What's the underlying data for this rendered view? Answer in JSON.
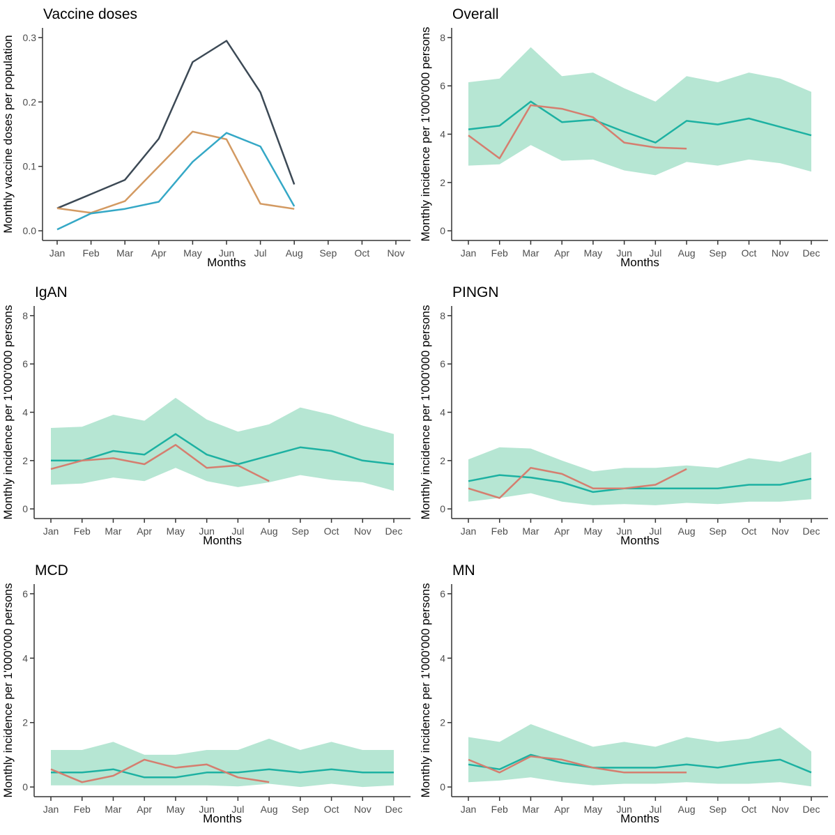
{
  "colors": {
    "axis_line": "#333333",
    "tick_text": "#4d4d4d",
    "title_text": "#000000",
    "navy": "#3c4955",
    "orange": "#d39a62",
    "blue": "#35a8c6",
    "teal": "#1db1a2",
    "red": "#d57e6f",
    "ribbon": "#b6e6d3"
  },
  "chart_data": [
    {
      "id": "vaccine-doses",
      "type": "line",
      "title": "Vaccine doses",
      "xlabel": "Months",
      "ylabel": "Monthly vaccine doses per population",
      "categories": [
        "Jan",
        "Feb",
        "Mar",
        "Apr",
        "May",
        "Jun",
        "Jul",
        "Aug",
        "Sep",
        "Oct",
        "Nov"
      ],
      "ylim": [
        0,
        0.3
      ],
      "yticks": [
        0,
        0.1,
        0.2,
        0.3
      ],
      "ytick_labels": [
        "0.0",
        "0.1",
        "0.2",
        "0.3"
      ],
      "grid": false,
      "legend": "none",
      "series": [
        {
          "name": "navy",
          "color": "#3c4955",
          "values": [
            0.035,
            0.057,
            0.079,
            0.143,
            0.262,
            0.295,
            0.215,
            0.072
          ]
        },
        {
          "name": "orange",
          "color": "#d39a62",
          "values": [
            0.035,
            0.028,
            0.046,
            0.1,
            0.154,
            0.142,
            0.042,
            0.034
          ]
        },
        {
          "name": "blue",
          "color": "#35a8c6",
          "values": [
            0.002,
            0.027,
            0.034,
            0.045,
            0.107,
            0.152,
            0.131,
            0.038
          ]
        }
      ]
    },
    {
      "id": "overall",
      "type": "line",
      "title": "Overall",
      "xlabel": "Months",
      "ylabel": "Monthly incidence per 1'000'000 persons",
      "categories": [
        "Jan",
        "Feb",
        "Mar",
        "Apr",
        "May",
        "Jun",
        "Jul",
        "Aug",
        "Sep",
        "Oct",
        "Nov",
        "Dec"
      ],
      "ylim": [
        0,
        8
      ],
      "yticks": [
        0,
        2,
        4,
        6,
        8
      ],
      "ytick_labels": [
        "0",
        "2",
        "4",
        "6",
        "8"
      ],
      "grid": false,
      "legend": "none",
      "ribbon": {
        "color": "#b6e6d3",
        "upper": [
          6.15,
          6.3,
          7.6,
          6.4,
          6.55,
          5.9,
          5.35,
          6.4,
          6.15,
          6.55,
          6.3,
          5.75
        ],
        "lower": [
          2.7,
          2.75,
          3.55,
          2.9,
          2.95,
          2.5,
          2.3,
          2.85,
          2.7,
          2.95,
          2.8,
          2.45
        ]
      },
      "series": [
        {
          "name": "teal",
          "color": "#1db1a2",
          "values": [
            4.2,
            4.35,
            5.35,
            4.5,
            4.6,
            4.1,
            3.65,
            4.55,
            4.4,
            4.65,
            4.3,
            3.95
          ]
        },
        {
          "name": "red",
          "color": "#d57e6f",
          "values": [
            3.95,
            3.0,
            5.2,
            5.05,
            4.7,
            3.65,
            3.45,
            3.4
          ]
        }
      ]
    },
    {
      "id": "igan",
      "type": "line",
      "title": "IgAN",
      "xlabel": "Months",
      "ylabel": "Monthly incidence per 1'000'000 persons",
      "categories": [
        "Jan",
        "Feb",
        "Mar",
        "Apr",
        "May",
        "Jun",
        "Jul",
        "Aug",
        "Sep",
        "Oct",
        "Nov",
        "Dec"
      ],
      "ylim": [
        0,
        8
      ],
      "yticks": [
        0,
        2,
        4,
        6,
        8
      ],
      "ytick_labels": [
        "0",
        "2",
        "4",
        "6",
        "8"
      ],
      "grid": false,
      "legend": "none",
      "ribbon": {
        "color": "#b6e6d3",
        "upper": [
          3.35,
          3.4,
          3.9,
          3.65,
          4.6,
          3.7,
          3.2,
          3.5,
          4.2,
          3.9,
          3.45,
          3.1
        ],
        "lower": [
          1.0,
          1.05,
          1.3,
          1.15,
          1.7,
          1.15,
          0.9,
          1.1,
          1.4,
          1.2,
          1.1,
          0.75
        ]
      },
      "series": [
        {
          "name": "teal",
          "color": "#1db1a2",
          "values": [
            2.0,
            2.0,
            2.4,
            2.25,
            3.1,
            2.25,
            1.85,
            2.2,
            2.55,
            2.4,
            2.0,
            1.85
          ]
        },
        {
          "name": "red",
          "color": "#d57e6f",
          "values": [
            1.65,
            2.0,
            2.1,
            1.85,
            2.65,
            1.7,
            1.8,
            1.15
          ]
        }
      ]
    },
    {
      "id": "pingn",
      "type": "line",
      "title": "PINGN",
      "xlabel": "Months",
      "ylabel": "Monthly incidence per 1'000'000 persons",
      "categories": [
        "Jan",
        "Feb",
        "Mar",
        "Apr",
        "May",
        "Jun",
        "Jul",
        "Aug",
        "Sep",
        "Oct",
        "Nov",
        "Dec"
      ],
      "ylim": [
        0,
        8
      ],
      "yticks": [
        0,
        2,
        4,
        6,
        8
      ],
      "ytick_labels": [
        "0",
        "2",
        "4",
        "6",
        "8"
      ],
      "grid": false,
      "legend": "none",
      "ribbon": {
        "color": "#b6e6d3",
        "upper": [
          2.05,
          2.55,
          2.5,
          2.0,
          1.55,
          1.7,
          1.7,
          1.8,
          1.7,
          2.1,
          1.95,
          2.35
        ],
        "lower": [
          0.3,
          0.45,
          0.65,
          0.3,
          0.15,
          0.2,
          0.15,
          0.25,
          0.2,
          0.3,
          0.3,
          0.4
        ]
      },
      "series": [
        {
          "name": "teal",
          "color": "#1db1a2",
          "values": [
            1.15,
            1.4,
            1.3,
            1.1,
            0.7,
            0.85,
            0.85,
            0.85,
            0.85,
            1.0,
            1.0,
            1.25
          ]
        },
        {
          "name": "red",
          "color": "#d57e6f",
          "values": [
            0.85,
            0.45,
            1.7,
            1.45,
            0.85,
            0.85,
            1.0,
            1.65
          ]
        }
      ]
    },
    {
      "id": "mcd",
      "type": "line",
      "title": "MCD",
      "xlabel": "Months",
      "ylabel": "Monthly incidence per 1'000'000 persons",
      "categories": [
        "Jan",
        "Feb",
        "Mar",
        "Apr",
        "May",
        "Jun",
        "Jul",
        "Aug",
        "Sep",
        "Oct",
        "Nov",
        "Dec"
      ],
      "ylim": [
        0,
        6
      ],
      "yticks": [
        0,
        2,
        4,
        6
      ],
      "ytick_labels": [
        "0",
        "2",
        "4",
        "6"
      ],
      "grid": false,
      "legend": "none",
      "ribbon": {
        "color": "#b6e6d3",
        "upper": [
          1.15,
          1.15,
          1.4,
          1.0,
          1.0,
          1.15,
          1.15,
          1.5,
          1.15,
          1.4,
          1.15,
          1.15
        ],
        "lower": [
          0.05,
          0.05,
          0.05,
          0.05,
          0.05,
          0.05,
          0.02,
          0.1,
          0.0,
          0.1,
          0.0,
          0.05
        ]
      },
      "series": [
        {
          "name": "teal",
          "color": "#1db1a2",
          "values": [
            0.45,
            0.45,
            0.55,
            0.3,
            0.3,
            0.45,
            0.45,
            0.55,
            0.45,
            0.55,
            0.45,
            0.45
          ]
        },
        {
          "name": "red",
          "color": "#d57e6f",
          "values": [
            0.55,
            0.15,
            0.35,
            0.85,
            0.6,
            0.7,
            0.3,
            0.15
          ]
        }
      ]
    },
    {
      "id": "mn",
      "type": "line",
      "title": "MN",
      "xlabel": "Months",
      "ylabel": "Monthly incidence per 1'000'000 persons",
      "categories": [
        "Jan",
        "Feb",
        "Mar",
        "Apr",
        "May",
        "Jun",
        "Jul",
        "Aug",
        "Sep",
        "Oct",
        "Nov",
        "Dec"
      ],
      "ylim": [
        0,
        6
      ],
      "yticks": [
        0,
        2,
        4,
        6
      ],
      "ytick_labels": [
        "0",
        "2",
        "4",
        "6"
      ],
      "grid": false,
      "legend": "none",
      "ribbon": {
        "color": "#b6e6d3",
        "upper": [
          1.55,
          1.4,
          1.95,
          1.6,
          1.25,
          1.4,
          1.25,
          1.55,
          1.4,
          1.5,
          1.85,
          1.1
        ],
        "lower": [
          0.15,
          0.2,
          0.3,
          0.15,
          0.05,
          0.1,
          0.1,
          0.15,
          0.1,
          0.1,
          0.15,
          0.02
        ]
      },
      "series": [
        {
          "name": "teal",
          "color": "#1db1a2",
          "values": [
            0.7,
            0.55,
            1.0,
            0.75,
            0.6,
            0.6,
            0.6,
            0.7,
            0.6,
            0.75,
            0.85,
            0.45
          ]
        },
        {
          "name": "red",
          "color": "#d57e6f",
          "values": [
            0.85,
            0.45,
            0.95,
            0.85,
            0.6,
            0.45,
            0.45,
            0.45
          ]
        }
      ]
    }
  ]
}
